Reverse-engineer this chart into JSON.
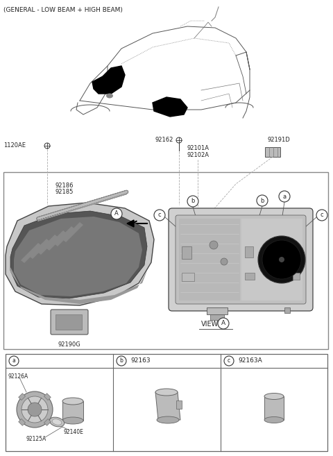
{
  "title": "(GENERAL - LOW BEAM + HIGH BEAM)",
  "bg_color": "#ffffff",
  "fig_width": 4.8,
  "fig_height": 6.57,
  "dpi": 100,
  "label_92162": "92162",
  "label_92191D": "92191D",
  "label_1120AE": "1120AE",
  "label_92101A": "92101A",
  "label_92102A": "92102A",
  "label_92186": "92186",
  "label_92185": "92185",
  "label_92190G": "92190G",
  "label_VIEW": "VIEW",
  "label_A": "A",
  "label_a": "a",
  "label_b": "b",
  "label_c": "c",
  "label_92163": "92163",
  "label_92163A": "92163A",
  "label_92126A": "92126A",
  "label_92140E": "92140E",
  "label_92125A": "92125A",
  "gray_light": "#d8d8d8",
  "gray_mid": "#aaaaaa",
  "gray_dark": "#666666",
  "gray_darker": "#444444",
  "black": "#111111",
  "line_color": "#555555",
  "text_color": "#222222"
}
